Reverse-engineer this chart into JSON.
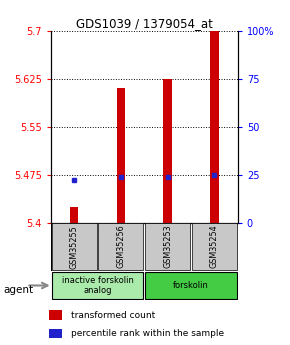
{
  "title": "GDS1039 / 1379054_at",
  "samples": [
    "GSM35255",
    "GSM35256",
    "GSM35253",
    "GSM35254"
  ],
  "transformed_counts": [
    5.425,
    5.61,
    5.625,
    5.7
  ],
  "percentile_ranks": [
    22,
    24,
    24,
    25
  ],
  "ylim_left": [
    5.4,
    5.7
  ],
  "yticks_left": [
    5.4,
    5.475,
    5.55,
    5.625,
    5.7
  ],
  "ylim_right": [
    0,
    100
  ],
  "yticks_right": [
    0,
    25,
    50,
    75,
    100
  ],
  "bar_color": "#cc0000",
  "percentile_color": "#2222cc",
  "groups": [
    {
      "label": "inactive forskolin\nanalog",
      "color": "#aaeaaa"
    },
    {
      "label": "forskolin",
      "color": "#44cc44"
    }
  ],
  "legend_items": [
    {
      "color": "#cc0000",
      "label": "transformed count"
    },
    {
      "color": "#2222cc",
      "label": "percentile rank within the sample"
    }
  ],
  "bar_width": 0.18,
  "agent_label": "agent"
}
